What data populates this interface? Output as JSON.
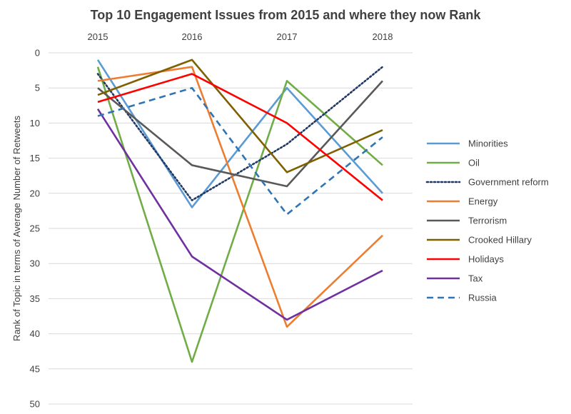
{
  "chart_data": {
    "type": "line",
    "title": "Top 10 Engagement Issues from 2015 and where they now Rank",
    "xlabel": "",
    "ylabel": "Rank of Topic in terms of Average Number of Retweets",
    "categories": [
      "2015",
      "2016",
      "2017",
      "2018"
    ],
    "y_inverted": true,
    "ylim": [
      0,
      50
    ],
    "yticks": [
      0,
      5,
      10,
      15,
      20,
      25,
      30,
      35,
      40,
      45,
      50
    ],
    "grid": "horizontal",
    "legend_position": "right",
    "series": [
      {
        "name": "Minorities",
        "values": [
          1,
          22,
          5,
          20
        ],
        "color": "#5b9bd5",
        "dash": "solid"
      },
      {
        "name": "Oil",
        "values": [
          2,
          44,
          4,
          16
        ],
        "color": "#70ad47",
        "dash": "solid"
      },
      {
        "name": "Government reform",
        "values": [
          3,
          21,
          13,
          2
        ],
        "color": "#203864",
        "dash": "dotted"
      },
      {
        "name": "Energy",
        "values": [
          4,
          2,
          39,
          26
        ],
        "color": "#ed7d31",
        "dash": "solid"
      },
      {
        "name": "Terrorism",
        "values": [
          5,
          16,
          19,
          4
        ],
        "color": "#595959",
        "dash": "solid"
      },
      {
        "name": "Crooked Hillary",
        "values": [
          6,
          1,
          17,
          11
        ],
        "color": "#7f6000",
        "dash": "solid"
      },
      {
        "name": "Holidays",
        "values": [
          7,
          3,
          10,
          21
        ],
        "color": "#ff0000",
        "dash": "solid"
      },
      {
        "name": "Tax",
        "values": [
          8,
          29,
          38,
          31
        ],
        "color": "#7030a0",
        "dash": "solid"
      },
      {
        "name": "Russia",
        "values": [
          9,
          5,
          23,
          12
        ],
        "color": "#2e75b6",
        "dash": "dashed"
      }
    ]
  }
}
